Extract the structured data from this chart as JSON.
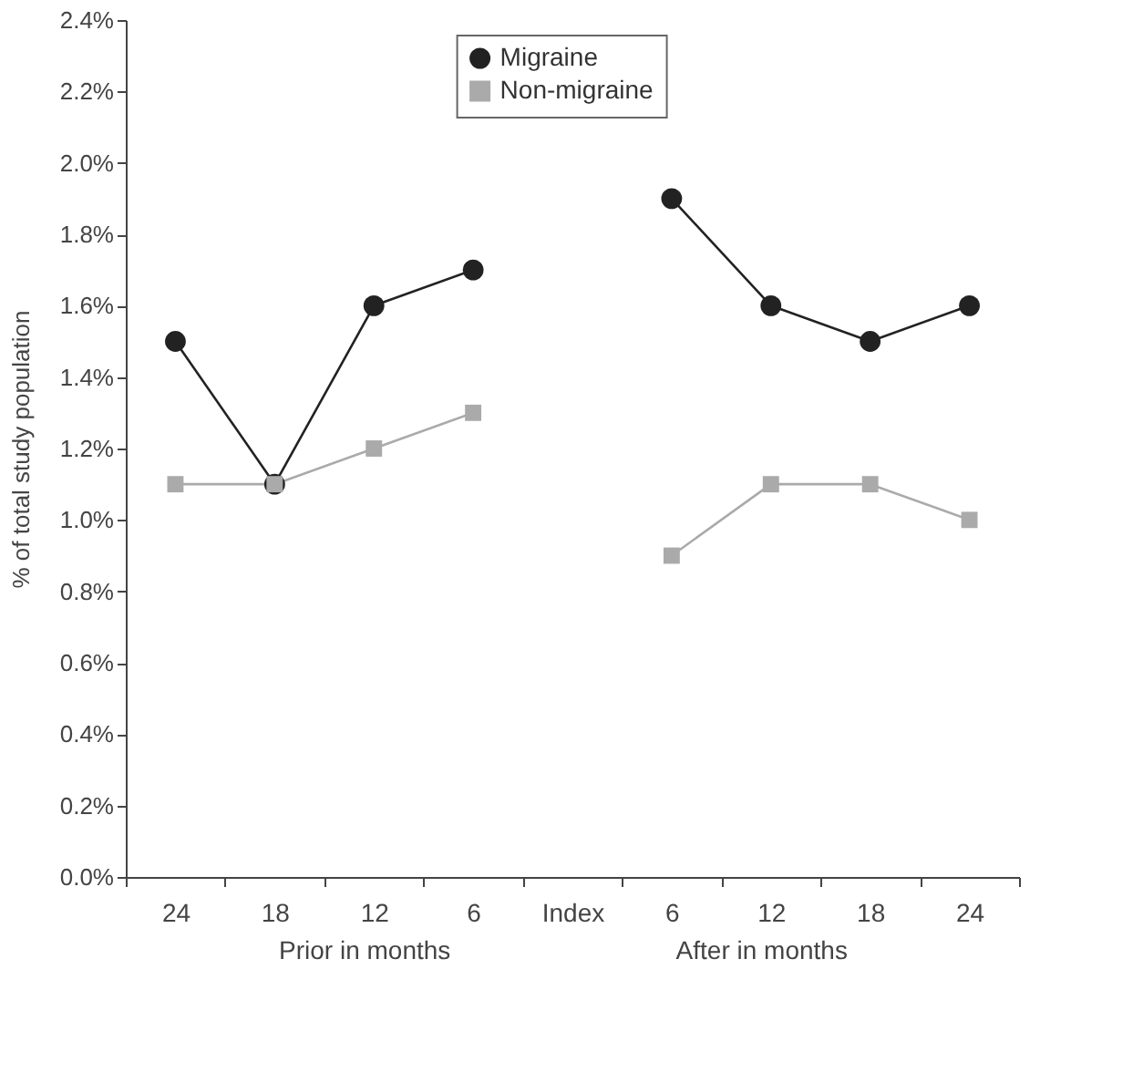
{
  "chart_data": {
    "type": "line",
    "ylabel": "% of total study population",
    "categories": [
      "24",
      "18",
      "12",
      "6",
      "Index",
      "6",
      "12",
      "18",
      "24"
    ],
    "series": [
      {
        "name": "Migraine",
        "color": "#222222",
        "marker": "circle",
        "values": [
          1.5,
          1.1,
          1.6,
          1.7,
          null,
          1.9,
          1.6,
          1.5,
          1.6
        ]
      },
      {
        "name": "Non-migraine",
        "color": "#aaaaaa",
        "marker": "square",
        "values": [
          1.1,
          1.1,
          1.2,
          1.3,
          null,
          0.9,
          1.1,
          1.1,
          1.0
        ]
      }
    ],
    "ylim": [
      0,
      2.4
    ],
    "yticks": [
      {
        "value": 0,
        "label": "0.0%"
      },
      {
        "value": 0.2,
        "label": "0.2%"
      },
      {
        "value": 0.4,
        "label": "0.4%"
      },
      {
        "value": 0.6,
        "label": "0.6%"
      },
      {
        "value": 0.8,
        "label": "0.8%"
      },
      {
        "value": 1.0,
        "label": "1.0%"
      },
      {
        "value": 1.2,
        "label": "1.2%"
      },
      {
        "value": 1.4,
        "label": "1.4%"
      },
      {
        "value": 1.6,
        "label": "1.6%"
      },
      {
        "value": 1.8,
        "label": "1.8%"
      },
      {
        "value": 2.0,
        "label": "2.0%"
      },
      {
        "value": 2.2,
        "label": "2.2%"
      },
      {
        "value": 2.4,
        "label": "2.4%"
      }
    ],
    "annotations": [
      "Prior in months",
      "After in months"
    ],
    "grid": false,
    "legend": "top",
    "line_style": "solid"
  }
}
